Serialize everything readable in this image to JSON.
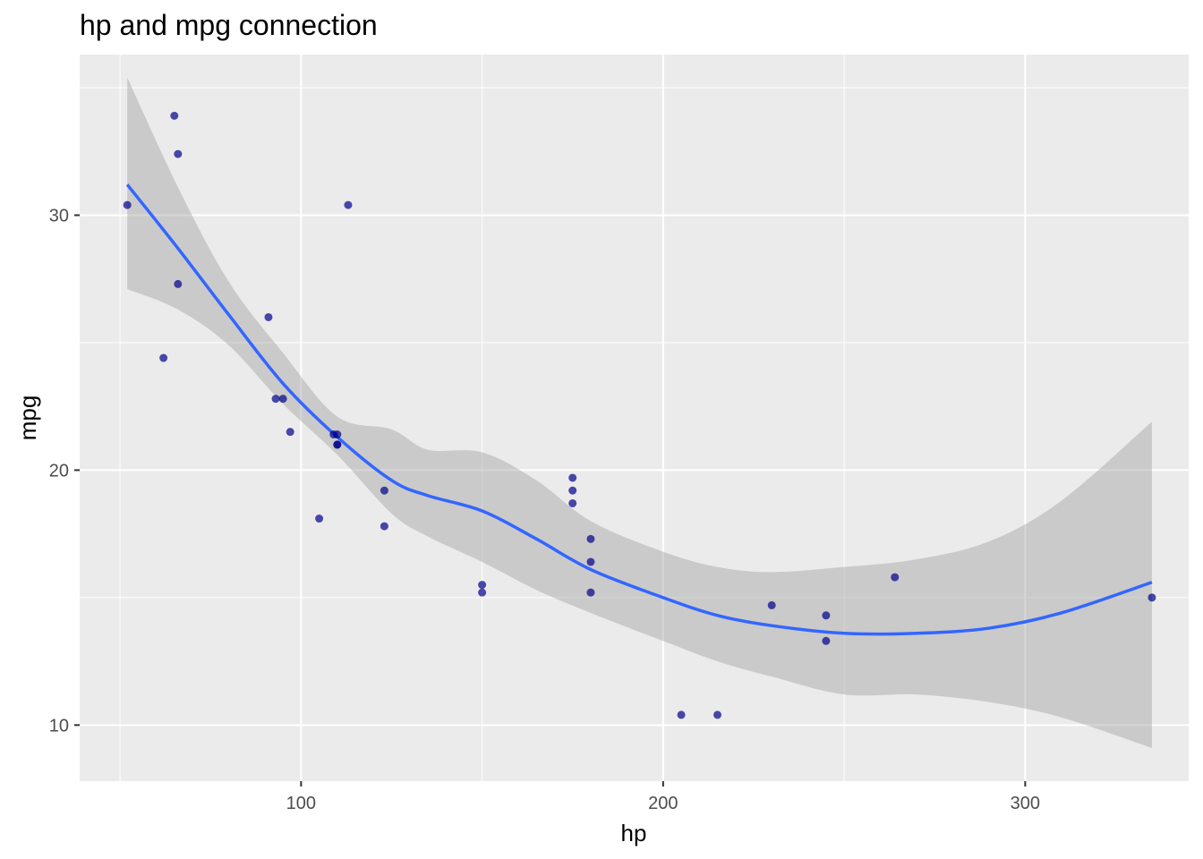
{
  "chart_data": {
    "type": "scatter",
    "title": "hp and mpg connection",
    "xlabel": "hp",
    "ylabel": "mpg",
    "xlim": [
      38.85,
      345.15
    ],
    "ylim": [
      7.8,
      36.3
    ],
    "x_ticks": [
      100,
      200,
      300
    ],
    "y_ticks": [
      10,
      20,
      30
    ],
    "grid": true,
    "colors": {
      "panel": "#EBEBEB",
      "grid": "#FFFFFF",
      "points": "#00008B",
      "smooth_line": "#3366FF",
      "ribbon": "#999999"
    },
    "points": [
      {
        "x": 110,
        "y": 21.0
      },
      {
        "x": 110,
        "y": 21.0
      },
      {
        "x": 93,
        "y": 22.8
      },
      {
        "x": 110,
        "y": 21.4
      },
      {
        "x": 175,
        "y": 18.7
      },
      {
        "x": 105,
        "y": 18.1
      },
      {
        "x": 245,
        "y": 14.3
      },
      {
        "x": 62,
        "y": 24.4
      },
      {
        "x": 95,
        "y": 22.8
      },
      {
        "x": 123,
        "y": 19.2
      },
      {
        "x": 123,
        "y": 17.8
      },
      {
        "x": 180,
        "y": 16.4
      },
      {
        "x": 180,
        "y": 17.3
      },
      {
        "x": 180,
        "y": 15.2
      },
      {
        "x": 205,
        "y": 10.4
      },
      {
        "x": 215,
        "y": 10.4
      },
      {
        "x": 230,
        "y": 14.7
      },
      {
        "x": 66,
        "y": 32.4
      },
      {
        "x": 52,
        "y": 30.4
      },
      {
        "x": 65,
        "y": 33.9
      },
      {
        "x": 97,
        "y": 21.5
      },
      {
        "x": 150,
        "y": 15.5
      },
      {
        "x": 150,
        "y": 15.2
      },
      {
        "x": 245,
        "y": 13.3
      },
      {
        "x": 175,
        "y": 19.2
      },
      {
        "x": 66,
        "y": 27.3
      },
      {
        "x": 91,
        "y": 26.0
      },
      {
        "x": 113,
        "y": 30.4
      },
      {
        "x": 264,
        "y": 15.8
      },
      {
        "x": 175,
        "y": 19.7
      },
      {
        "x": 335,
        "y": 15.0
      },
      {
        "x": 109,
        "y": 21.4
      }
    ],
    "smooth": {
      "method": "loess",
      "x": [
        52,
        66,
        80,
        95,
        110,
        125,
        135,
        150,
        165,
        180,
        200,
        215,
        230,
        250,
        270,
        290,
        310,
        335
      ],
      "y": [
        31.2,
        28.7,
        26.1,
        23.4,
        21.3,
        19.6,
        19.0,
        18.4,
        17.3,
        16.1,
        15.0,
        14.3,
        13.9,
        13.6,
        13.6,
        13.8,
        14.4,
        15.6
      ],
      "ymin": [
        27.1,
        26.3,
        24.9,
        22.6,
        20.6,
        18.3,
        17.4,
        16.4,
        15.3,
        14.4,
        13.3,
        12.5,
        11.9,
        11.2,
        11.2,
        10.9,
        10.3,
        9.1
      ],
      "ymax": [
        35.4,
        31.1,
        27.4,
        24.6,
        22.1,
        21.6,
        20.8,
        20.7,
        19.6,
        18.0,
        16.8,
        16.2,
        16.0,
        16.2,
        16.5,
        17.2,
        18.8,
        21.9
      ]
    }
  }
}
